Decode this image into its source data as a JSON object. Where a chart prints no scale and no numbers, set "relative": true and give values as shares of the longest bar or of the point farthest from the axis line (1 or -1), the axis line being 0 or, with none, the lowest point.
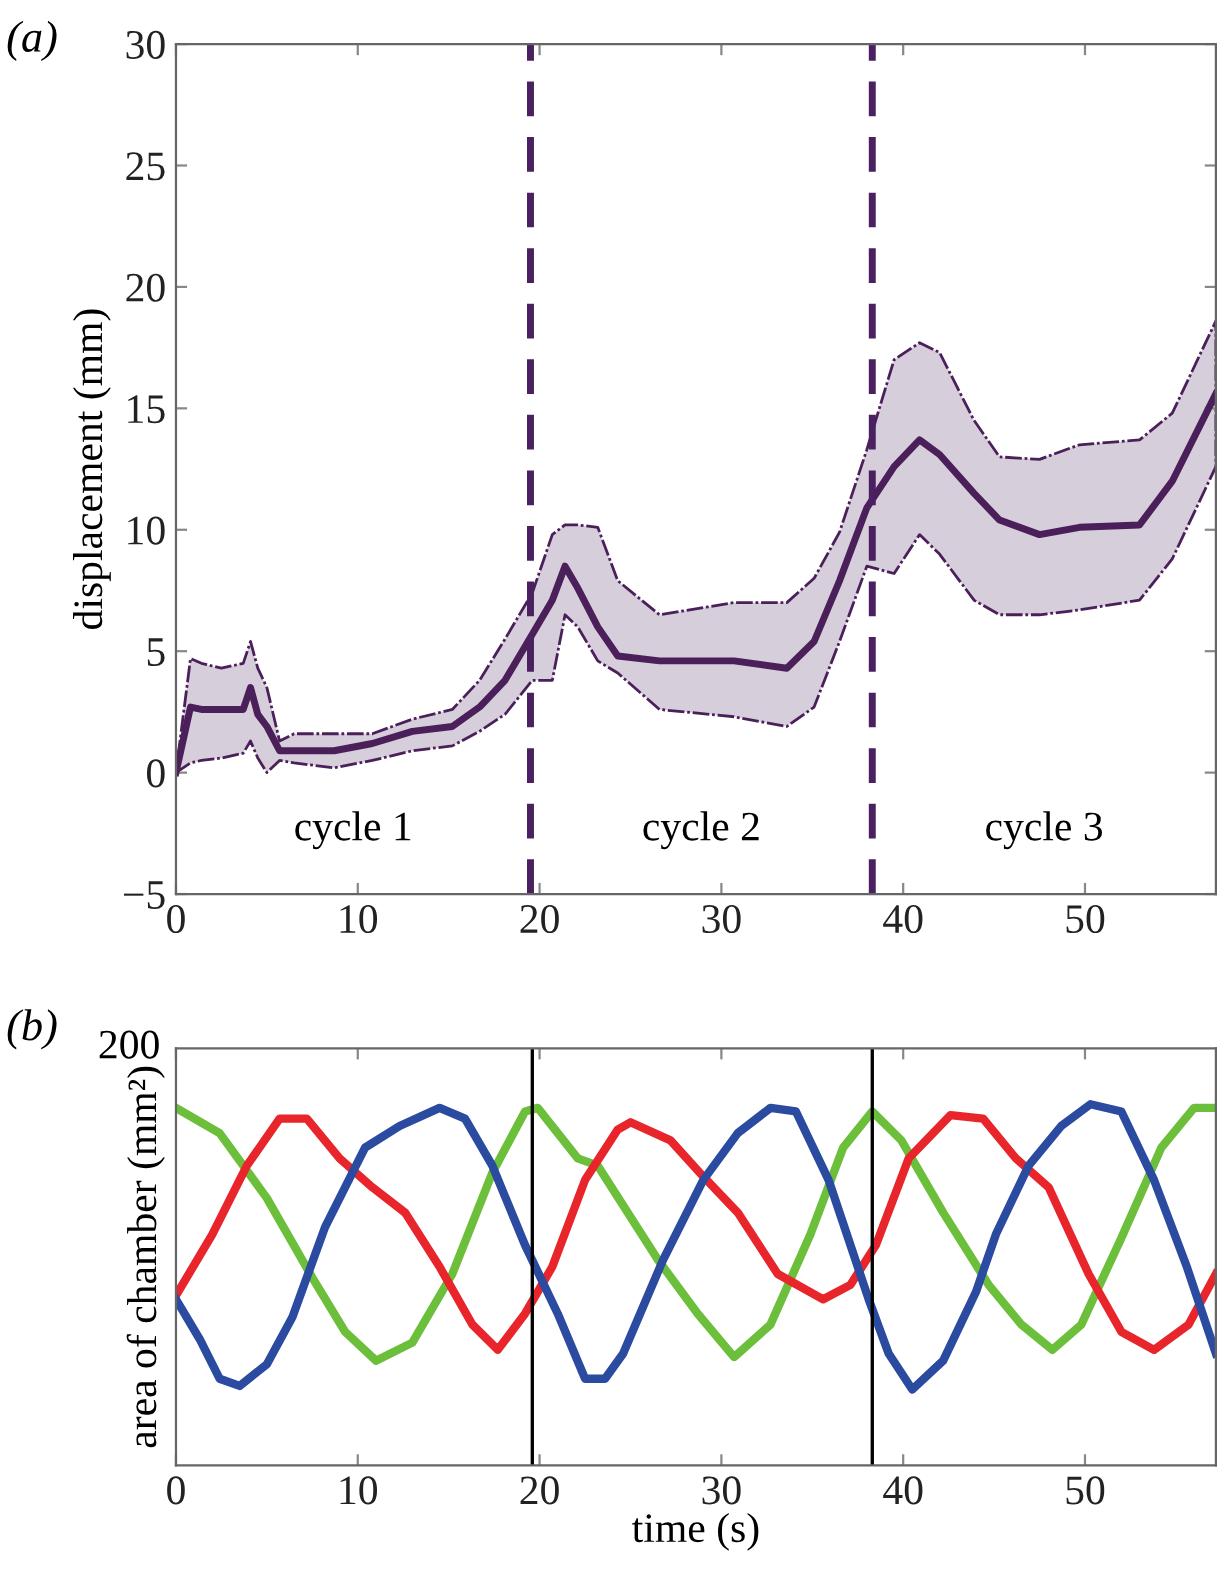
{
  "chart_data": [
    {
      "type": "line",
      "title": "(a)",
      "ylabel": "displacement (mm)",
      "xlim": [
        0,
        57.2
      ],
      "ylim": [
        -5,
        30
      ],
      "xticks": [
        0,
        10,
        20,
        30,
        40,
        50
      ],
      "yticks": [
        -5,
        0,
        5,
        10,
        15,
        20,
        25,
        30
      ],
      "grid": false,
      "legend": false,
      "ref_lines": [
        {
          "axis": "x",
          "value": 19.5,
          "color": "#4a2060",
          "line_style": "dashed"
        },
        {
          "axis": "x",
          "value": 38.3,
          "color": "#4a2060",
          "line_style": "dashed"
        }
      ],
      "annotations": [
        "cycle 1",
        "cycle 2",
        "cycle 3"
      ],
      "series": [
        {
          "color": "#4b1f5a",
          "x": [
            0,
            0.8,
            1.4,
            2.5,
            3.7,
            4.1,
            4.5,
            5,
            5.7,
            6.5,
            8.7,
            10.8,
            13,
            15.2,
            16.7,
            18.1,
            19.6,
            20.7,
            21.4,
            22.1,
            23.2,
            24.3,
            26.6,
            30.7,
            33.6,
            35.1,
            36.5,
            38,
            39.5,
            40.9,
            42,
            43.9,
            45.3,
            47.5,
            49.7,
            53,
            54.8,
            57.2
          ],
          "values": [
            0,
            2.7,
            2.6,
            2.6,
            2.6,
            3.5,
            2.4,
            1.9,
            0.9,
            0.9,
            0.9,
            1.2,
            1.7,
            1.9,
            2.7,
            3.8,
            5.7,
            7.1,
            8.5,
            7.6,
            6.0,
            4.8,
            4.6,
            4.6,
            4.3,
            5.4,
            7.9,
            10.9,
            12.6,
            13.7,
            13.1,
            11.5,
            10.4,
            9.8,
            10.1,
            10.2,
            12.0,
            15.6
          ],
          "upper": [
            0,
            4.7,
            4.5,
            4.3,
            4.5,
            5.4,
            4.3,
            3.5,
            1.3,
            1.6,
            1.6,
            1.6,
            2.2,
            2.6,
            3.8,
            5.5,
            7.4,
            9.8,
            10.2,
            10.2,
            10.1,
            7.9,
            6.5,
            7.0,
            7.0,
            8.0,
            9.9,
            13.3,
            17.0,
            17.7,
            17.3,
            14.5,
            13.0,
            12.9,
            13.5,
            13.7,
            14.8,
            18.6
          ],
          "lower": [
            0,
            0.4,
            0.5,
            0.6,
            0.8,
            1.3,
            0.6,
            0.0,
            0.5,
            0.4,
            0.2,
            0.5,
            0.9,
            1.1,
            1.7,
            2.4,
            3.8,
            3.8,
            6.5,
            6.0,
            4.6,
            4.1,
            2.6,
            2.3,
            1.9,
            2.7,
            5.4,
            8.5,
            8.2,
            9.8,
            9.0,
            7.1,
            6.5,
            6.5,
            6.7,
            7.1,
            8.8,
            12.6
          ]
        }
      ]
    },
    {
      "type": "line",
      "title": "(b)",
      "xlabel": "time (s)",
      "ylabel": "area of chamber (mm²)",
      "relative": true,
      "xlim": [
        0,
        57.2
      ],
      "xticks": [
        0,
        10,
        20,
        30,
        40,
        50
      ],
      "grid": false,
      "legend": false,
      "annotations": [
        "200"
      ],
      "ref_lines": [
        {
          "axis": "x",
          "value": 19.6,
          "color": "#000000",
          "line_style": "solid"
        },
        {
          "axis": "x",
          "value": 38.3,
          "color": "#000000",
          "line_style": "solid"
        }
      ],
      "series": [
        {
          "color": "#6cbf3a",
          "x": [
            0,
            2.4,
            5,
            7.5,
            9.3,
            11,
            13,
            15.2,
            17.4,
            19.2,
            19.9,
            22.1,
            23.2,
            26.5,
            28.7,
            30.7,
            32.7,
            34.9,
            36.7,
            38.3,
            39.9,
            42.2,
            44.7,
            46.5,
            48.2,
            49.8,
            52,
            54.2,
            56,
            57.2
          ],
          "values": [
            0.99,
            0.92,
            0.74,
            0.52,
            0.37,
            0.29,
            0.34,
            0.53,
            0.81,
            0.98,
            0.99,
            0.85,
            0.83,
            0.57,
            0.42,
            0.3,
            0.39,
            0.64,
            0.88,
            0.98,
            0.9,
            0.7,
            0.5,
            0.39,
            0.32,
            0.39,
            0.63,
            0.88,
            0.99,
            0.99
          ]
        },
        {
          "color": "#e8252a",
          "x": [
            0,
            2,
            3.9,
            5.7,
            7.2,
            9,
            10.8,
            12.6,
            14.5,
            16.3,
            17.7,
            19.2,
            20.7,
            22.5,
            24.3,
            25,
            27.2,
            29,
            30.9,
            33.1,
            35.6,
            37.1,
            38.5,
            40.3,
            42.6,
            44.4,
            46.2,
            48,
            50.2,
            52,
            53.8,
            55.7,
            57.2
          ],
          "values": [
            0.47,
            0.64,
            0.83,
            0.96,
            0.96,
            0.85,
            0.77,
            0.7,
            0.55,
            0.39,
            0.32,
            0.42,
            0.55,
            0.79,
            0.93,
            0.95,
            0.9,
            0.8,
            0.7,
            0.53,
            0.46,
            0.5,
            0.61,
            0.85,
            0.97,
            0.96,
            0.85,
            0.77,
            0.53,
            0.37,
            0.32,
            0.39,
            0.53
          ]
        },
        {
          "color": "#2b4ba0",
          "x": [
            0,
            1.3,
            2.4,
            3.5,
            5,
            6.4,
            8.2,
            10.4,
            12.3,
            14.5,
            15.9,
            17.4,
            19.2,
            21,
            22.5,
            23.6,
            24.6,
            26.8,
            29,
            30.9,
            32.7,
            34.1,
            35.9,
            38.1,
            39.2,
            40.5,
            42.2,
            44,
            45.1,
            46.9,
            48.7,
            50.3,
            52,
            53.8,
            55.6,
            57.2
          ],
          "values": [
            0.46,
            0.35,
            0.24,
            0.22,
            0.28,
            0.41,
            0.66,
            0.88,
            0.94,
            0.99,
            0.96,
            0.83,
            0.61,
            0.42,
            0.24,
            0.24,
            0.31,
            0.57,
            0.79,
            0.92,
            0.99,
            0.98,
            0.79,
            0.46,
            0.31,
            0.21,
            0.29,
            0.48,
            0.64,
            0.83,
            0.94,
            1.0,
            0.98,
            0.79,
            0.55,
            0.31
          ]
        }
      ]
    }
  ]
}
